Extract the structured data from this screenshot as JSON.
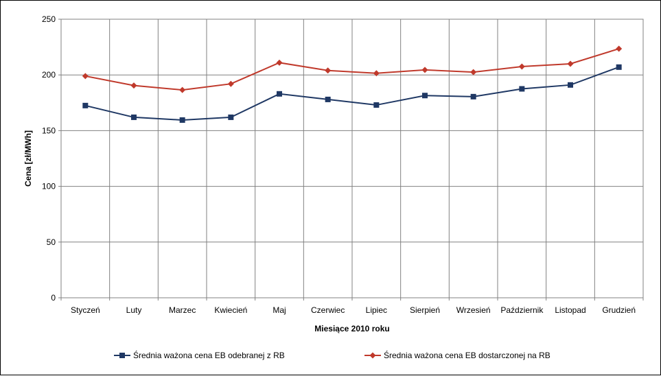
{
  "chart_data": {
    "type": "line",
    "title": "",
    "xlabel": "Miesiące 2010  roku",
    "ylabel": "Cena [zł/MWh]",
    "ylim": [
      0,
      250
    ],
    "yticks": [
      0,
      50,
      100,
      150,
      200,
      250
    ],
    "grid": true,
    "legend_position": "bottom",
    "categories": [
      "Styczeń",
      "Luty",
      "Marzec",
      "Kwiecień",
      "Maj",
      "Czerwiec",
      "Lipiec",
      "Sierpień",
      "Wrzesień",
      "Październik",
      "Listopad",
      "Grudzień"
    ],
    "series": [
      {
        "name": "Średnia ważona cena EB odebranej z RB",
        "color": "#1f3864",
        "marker": "square",
        "values": [
          172.5,
          162,
          159.5,
          162,
          183,
          178,
          173,
          181.5,
          180.5,
          187.5,
          191,
          207
        ]
      },
      {
        "name": "Średnia ważona cena EB dostarczonej na RB",
        "color": "#c0392b",
        "marker": "diamond",
        "values": [
          199,
          190.5,
          186.5,
          192,
          211,
          204,
          201.5,
          204.5,
          202.5,
          207.5,
          210,
          223.5
        ]
      }
    ]
  }
}
